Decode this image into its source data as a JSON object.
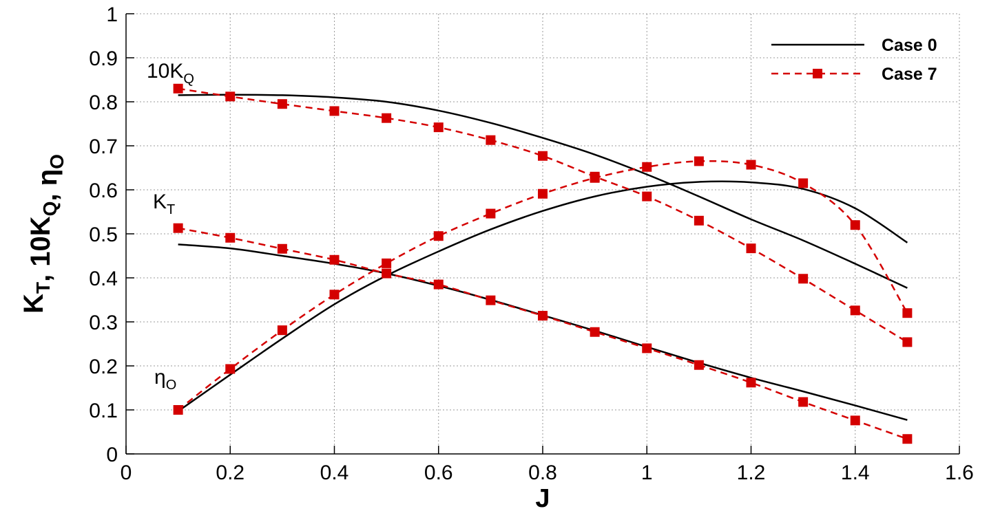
{
  "chart_data": {
    "type": "line",
    "x_label": "J",
    "y_label": [
      {
        "text": "K",
        "sub": "T"
      },
      {
        "text": ", 10K",
        "sub": "Q"
      },
      {
        "text": ", η",
        "sub": "O"
      }
    ],
    "x": [
      0.1,
      0.2,
      0.3,
      0.4,
      0.5,
      0.6,
      0.7,
      0.8,
      0.9,
      1.0,
      1.1,
      1.2,
      1.3,
      1.4,
      1.5
    ],
    "xlim": [
      0,
      1.6
    ],
    "xticks": [
      0,
      0.2,
      0.4,
      0.6,
      0.8,
      1,
      1.2,
      1.4,
      1.6
    ],
    "ylim": [
      0,
      1
    ],
    "yticks": [
      0,
      0.1,
      0.2,
      0.3,
      0.4,
      0.5,
      0.6,
      0.7,
      0.8,
      0.9,
      1
    ],
    "grid": true,
    "legend": "top-right",
    "annotations": [
      {
        "text": "10K",
        "sub": "Q"
      },
      {
        "text": "K",
        "sub": "T"
      },
      {
        "text": "η",
        "sub": "O"
      }
    ],
    "series": [
      {
        "name": "Case 0",
        "color": "#000000",
        "dashed": false,
        "marker": false,
        "curves": [
          {
            "values": [
              0.815,
              0.816,
              0.815,
              0.81,
              0.8,
              0.78,
              0.752,
              0.718,
              0.68,
              0.635,
              0.585,
              0.533,
              0.485,
              0.432,
              0.377
            ]
          },
          {
            "values": [
              0.476,
              0.467,
              0.45,
              0.432,
              0.41,
              0.382,
              0.35,
              0.315,
              0.28,
              0.243,
              0.207,
              0.173,
              0.142,
              0.11,
              0.077
            ]
          },
          {
            "values": [
              0.097,
              0.18,
              0.262,
              0.34,
              0.405,
              0.46,
              0.51,
              0.552,
              0.585,
              0.607,
              0.618,
              0.617,
              0.602,
              0.558,
              0.48
            ]
          }
        ]
      },
      {
        "name": "Case 7",
        "color": "#d40000",
        "dashed": true,
        "marker": true,
        "curves": [
          {
            "values": [
              0.83,
              0.812,
              0.795,
              0.779,
              0.763,
              0.742,
              0.713,
              0.677,
              0.63,
              0.585,
              0.53,
              0.467,
              0.398,
              0.326,
              0.254
            ]
          },
          {
            "values": [
              0.513,
              0.491,
              0.466,
              0.441,
              0.41,
              0.385,
              0.349,
              0.314,
              0.277,
              0.24,
              0.202,
              0.162,
              0.118,
              0.076,
              0.034
            ]
          },
          {
            "values": [
              0.1,
              0.193,
              0.281,
              0.362,
              0.433,
              0.495,
              0.546,
              0.591,
              0.627,
              0.652,
              0.665,
              0.657,
              0.615,
              0.52,
              0.32
            ]
          }
        ]
      }
    ]
  }
}
